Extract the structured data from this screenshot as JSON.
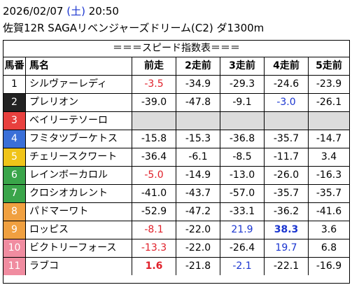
{
  "header": {
    "date": "2026/02/07",
    "weekday": "(土)",
    "time": "20:50",
    "race": "佐賀12R SAGAリベンジャーズドリーム(C2) ダ1300m"
  },
  "table": {
    "banner": "＝＝＝スピード指数表＝＝＝",
    "columns": [
      "馬番",
      "馬名",
      "前走",
      "2走前",
      "3走前",
      "4走前",
      "5走前"
    ],
    "rows": [
      {
        "no": "1",
        "name": "シルヴァーレディ",
        "bg": "#ffffff",
        "fg": "#000000",
        "speeds": [
          {
            "v": "-3.5",
            "style": "red"
          },
          {
            "v": "-34.9",
            "style": ""
          },
          {
            "v": "-29.3",
            "style": ""
          },
          {
            "v": "-24.6",
            "style": ""
          },
          {
            "v": "-23.9",
            "style": ""
          }
        ]
      },
      {
        "no": "2",
        "name": "プレリオン",
        "bg": "#222222",
        "fg": "#ffffff",
        "speeds": [
          {
            "v": "-39.0",
            "style": ""
          },
          {
            "v": "-47.8",
            "style": ""
          },
          {
            "v": "-9.1",
            "style": ""
          },
          {
            "v": "-3.0",
            "style": "blue"
          },
          {
            "v": "-26.1",
            "style": ""
          }
        ]
      },
      {
        "no": "3",
        "name": "ベイリーテソーロ",
        "bg": "#e8403e",
        "fg": "#ffffff",
        "speeds": [
          {
            "v": "",
            "style": "gray"
          },
          {
            "v": "",
            "style": "gray"
          },
          {
            "v": "",
            "style": "gray"
          },
          {
            "v": "",
            "style": "gray"
          },
          {
            "v": "",
            "style": "gray"
          }
        ]
      },
      {
        "no": "4",
        "name": "フミタツブーケトス",
        "bg": "#3a6fd8",
        "fg": "#ffffff",
        "speeds": [
          {
            "v": "-15.8",
            "style": ""
          },
          {
            "v": "-15.3",
            "style": ""
          },
          {
            "v": "-36.8",
            "style": ""
          },
          {
            "v": "-35.7",
            "style": ""
          },
          {
            "v": "-14.7",
            "style": ""
          }
        ]
      },
      {
        "no": "5",
        "name": "チェリースクワート",
        "bg": "#f0c419",
        "fg": "#ffffff",
        "speeds": [
          {
            "v": "-36.4",
            "style": ""
          },
          {
            "v": "-6.1",
            "style": ""
          },
          {
            "v": "-8.5",
            "style": ""
          },
          {
            "v": "-11.7",
            "style": ""
          },
          {
            "v": "3.4",
            "style": ""
          }
        ]
      },
      {
        "no": "6",
        "name": "レインボーカロル",
        "bg": "#3aa54a",
        "fg": "#ffffff",
        "speeds": [
          {
            "v": "-5.0",
            "style": "red"
          },
          {
            "v": "-14.9",
            "style": ""
          },
          {
            "v": "-13.0",
            "style": ""
          },
          {
            "v": "-26.0",
            "style": ""
          },
          {
            "v": "-16.3",
            "style": ""
          }
        ]
      },
      {
        "no": "7",
        "name": "クロシオカレント",
        "bg": "#3aa54a",
        "fg": "#ffffff",
        "speeds": [
          {
            "v": "-41.0",
            "style": ""
          },
          {
            "v": "-43.7",
            "style": ""
          },
          {
            "v": "-57.0",
            "style": ""
          },
          {
            "v": "-35.7",
            "style": ""
          },
          {
            "v": "-35.7",
            "style": ""
          }
        ]
      },
      {
        "no": "8",
        "name": "パドマーワト",
        "bg": "#f0a040",
        "fg": "#ffffff",
        "speeds": [
          {
            "v": "-52.9",
            "style": ""
          },
          {
            "v": "-47.2",
            "style": ""
          },
          {
            "v": "-33.1",
            "style": ""
          },
          {
            "v": "-36.2",
            "style": ""
          },
          {
            "v": "-41.6",
            "style": ""
          }
        ]
      },
      {
        "no": "9",
        "name": "ロッピス",
        "bg": "#f0a040",
        "fg": "#ffffff",
        "speeds": [
          {
            "v": "-8.1",
            "style": "red"
          },
          {
            "v": "-22.0",
            "style": ""
          },
          {
            "v": "21.9",
            "style": "blue"
          },
          {
            "v": "38.3",
            "style": "blue bold"
          },
          {
            "v": "3.6",
            "style": ""
          }
        ]
      },
      {
        "no": "10",
        "name": "ビクトリーフォース",
        "bg": "#f08ca0",
        "fg": "#ffffff",
        "speeds": [
          {
            "v": "-13.3",
            "style": "red"
          },
          {
            "v": "-22.0",
            "style": ""
          },
          {
            "v": "-26.4",
            "style": ""
          },
          {
            "v": "19.7",
            "style": "blue"
          },
          {
            "v": "6.8",
            "style": ""
          }
        ]
      },
      {
        "no": "11",
        "name": "ラブコ",
        "bg": "#f08ca0",
        "fg": "#ffffff",
        "speeds": [
          {
            "v": "1.6",
            "style": "red bold"
          },
          {
            "v": "-21.8",
            "style": ""
          },
          {
            "v": "-2.1",
            "style": "blue"
          },
          {
            "v": "-22.1",
            "style": ""
          },
          {
            "v": "-16.9",
            "style": ""
          }
        ]
      }
    ]
  }
}
